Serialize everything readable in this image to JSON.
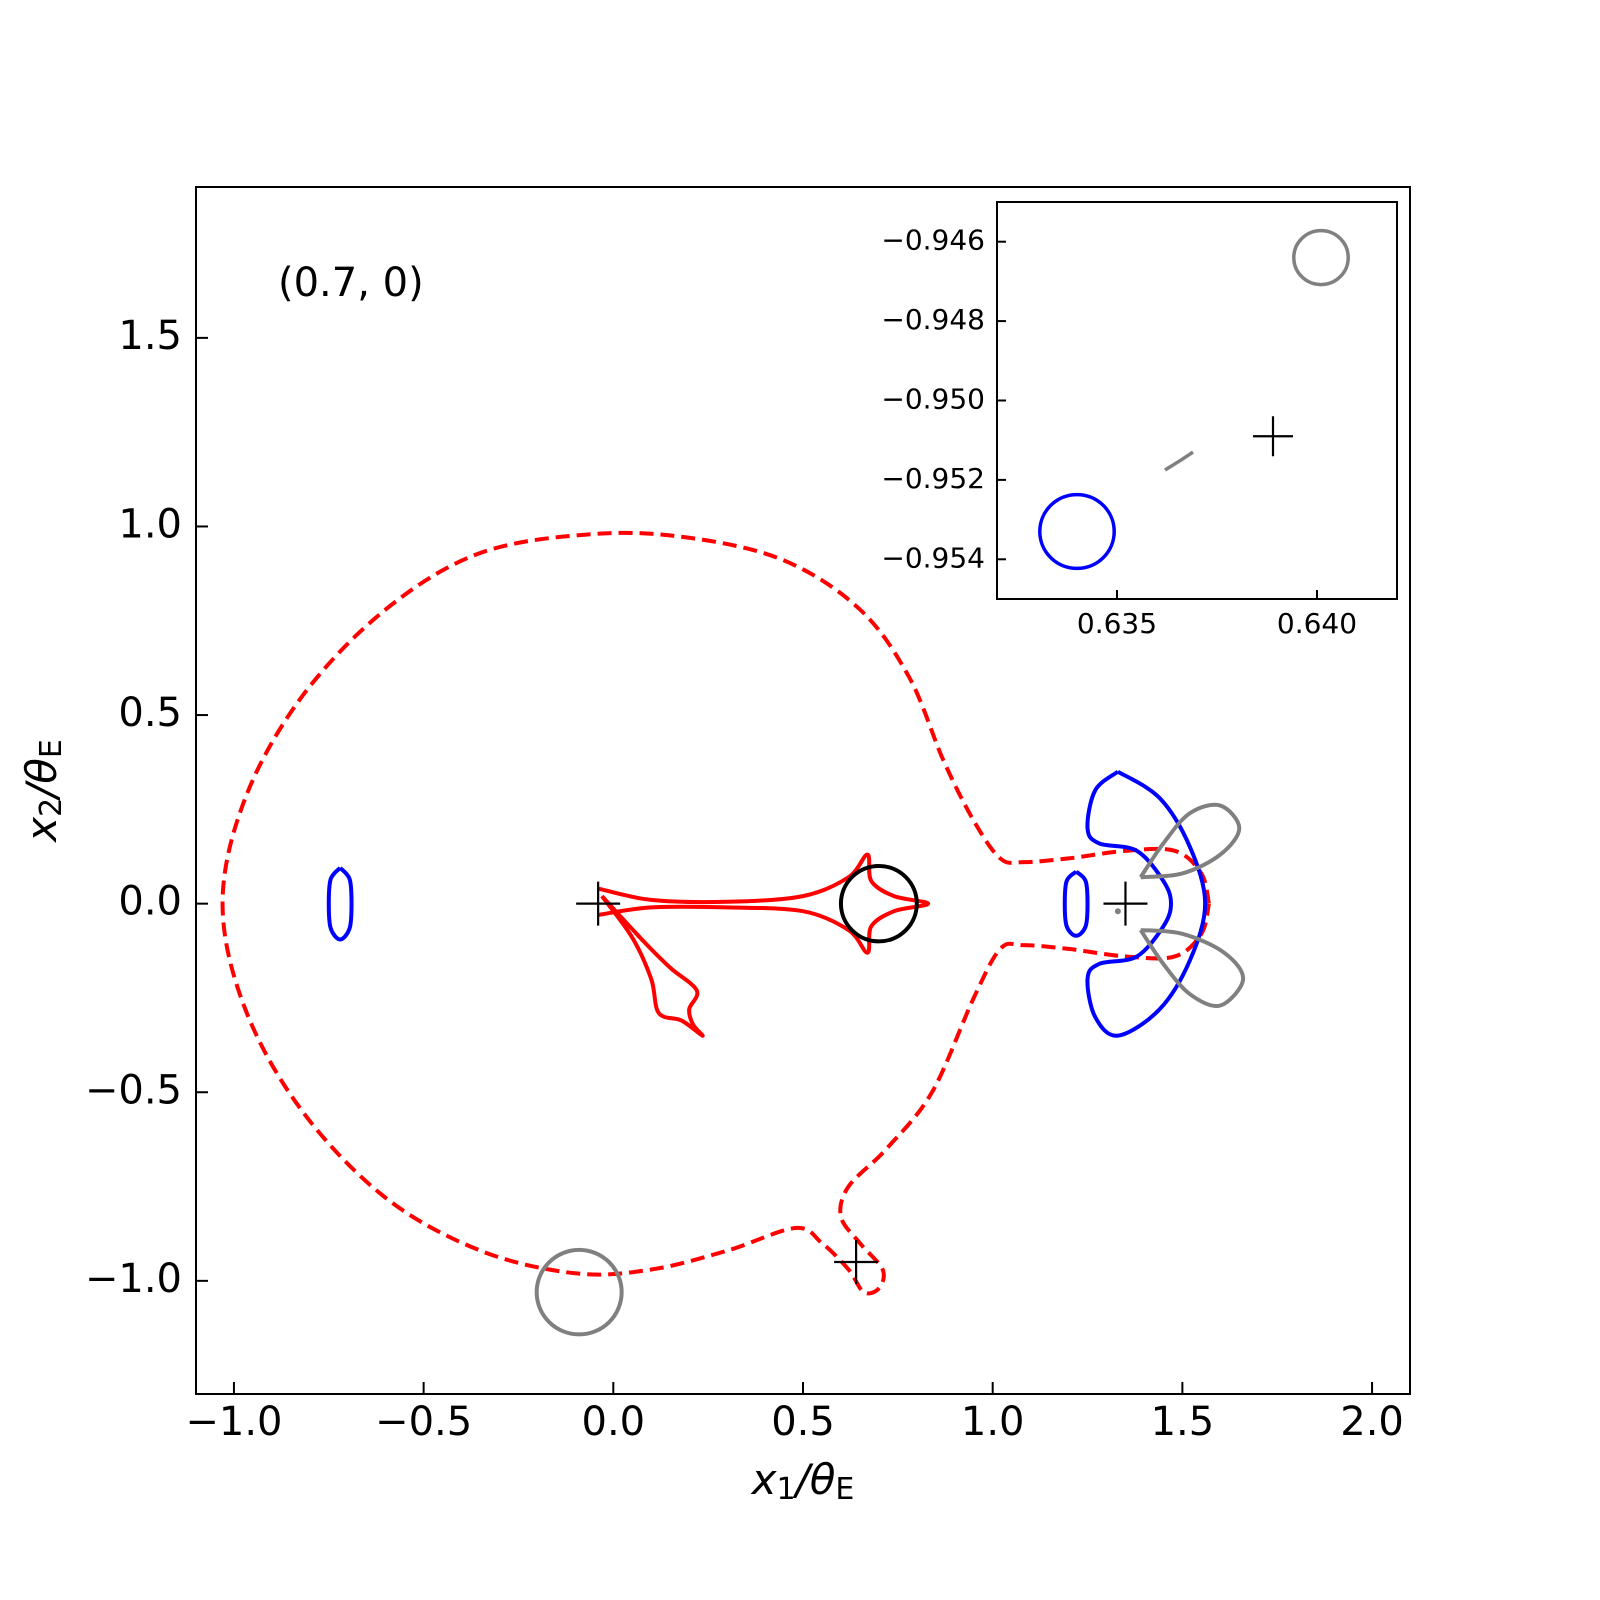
{
  "chart_data": [
    {
      "type": "line",
      "annotation": "(0.7, 0)",
      "xlabel": [
        "x",
        "1",
        "/θ",
        "E"
      ],
      "ylabel": [
        "x",
        "2",
        "/θ",
        "E"
      ],
      "xlim": [
        -1.1,
        2.1
      ],
      "ylim": [
        -1.3,
        1.9
      ],
      "xticks": [
        {
          "value": -1.0,
          "label": "−1.0"
        },
        {
          "value": -0.5,
          "label": "−0.5"
        },
        {
          "value": 0.0,
          "label": "0.0"
        },
        0.5,
        {
          "value": 1.0,
          "label": "1.0"
        },
        1.5,
        {
          "value": 2.0,
          "label": "2.0"
        }
      ],
      "yticks": [
        {
          "value": -1.0,
          "label": "−1.0"
        },
        {
          "value": -0.5,
          "label": "−0.5"
        },
        {
          "value": 0.0,
          "label": "0.0"
        },
        0.5,
        {
          "value": 1.0,
          "label": "1.0"
        },
        1.5
      ],
      "series": [
        {
          "style": "dashed",
          "color": "#ff0000",
          "x": [
            1.57,
            1.55,
            1.48,
            1.35,
            1.2,
            1.08,
            1.02,
            0.95,
            0.87,
            0.78,
            0.65,
            0.45,
            0.2,
            -0.05,
            -0.35,
            -0.6,
            -0.82,
            -0.97,
            -1.03,
            -0.97,
            -0.82,
            -0.6,
            -0.35,
            -0.1,
            0.1,
            0.3,
            0.48,
            0.55,
            0.62,
            0.66,
            0.7,
            0.71,
            0.65,
            0.6,
            0.62,
            0.72,
            0.84,
            0.95,
            1.02,
            1.08,
            1.2,
            1.35,
            1.48,
            1.55,
            1.57
          ],
          "y": [
            0,
            0.08,
            0.14,
            0.14,
            0.12,
            0.11,
            0.12,
            0.22,
            0.38,
            0.6,
            0.78,
            0.91,
            0.97,
            0.98,
            0.93,
            0.78,
            0.55,
            0.28,
            0,
            -0.28,
            -0.55,
            -0.78,
            -0.92,
            -0.98,
            -0.97,
            -0.92,
            -0.86,
            -0.9,
            -0.97,
            -1.03,
            -1.02,
            -0.97,
            -0.9,
            -0.83,
            -0.75,
            -0.65,
            -0.5,
            -0.25,
            -0.12,
            -0.11,
            -0.12,
            -0.14,
            -0.14,
            -0.08,
            0
          ]
        },
        {
          "style": "solid",
          "color": "#ff0000",
          "x": [
            -0.04,
            0.1,
            0.3,
            0.5,
            0.62,
            0.67,
            0.68,
            0.74,
            0.83,
            0.74,
            0.68,
            0.67,
            0.62,
            0.5,
            0.3,
            0.1,
            -0.04,
            null,
            -0.03,
            0.08,
            0.15,
            0.22,
            0.2,
            0.21,
            0.235,
            0.18,
            0.12,
            0.1,
            0.05,
            -0.03
          ],
          "y": [
            0.04,
            0.01,
            0.005,
            0.02,
            0.07,
            0.13,
            0.06,
            0.02,
            0,
            -0.02,
            -0.06,
            -0.13,
            -0.07,
            -0.02,
            -0.01,
            -0.01,
            -0.03,
            null,
            0.02,
            -0.1,
            -0.17,
            -0.23,
            -0.28,
            -0.32,
            -0.35,
            -0.31,
            -0.29,
            -0.2,
            -0.09,
            0.02
          ]
        },
        {
          "style": "solid",
          "color": "#0000ff",
          "x": [
            -0.72,
            -0.695,
            -0.69,
            -0.695,
            -0.72,
            -0.745,
            -0.75,
            -0.745,
            -0.72,
            null,
            1.22,
            1.245,
            1.25,
            1.245,
            1.22,
            1.195,
            1.19,
            1.195,
            1.22,
            null,
            1.33,
            1.44,
            1.52,
            1.56,
            1.52,
            1.44,
            1.33,
            1.27,
            1.25,
            1.28,
            1.38,
            1.45,
            1.47,
            1.45,
            1.38,
            1.28,
            1.25,
            1.27,
            1.33
          ],
          "y": [
            0.095,
            0.065,
            0,
            -0.065,
            -0.095,
            -0.065,
            0,
            0.065,
            0.095,
            null,
            0.085,
            0.06,
            0,
            -0.06,
            -0.085,
            -0.06,
            0,
            0.06,
            0.085,
            null,
            0.35,
            0.28,
            0.15,
            0,
            -0.15,
            -0.28,
            -0.35,
            -0.3,
            -0.2,
            -0.16,
            -0.14,
            -0.06,
            0,
            0.06,
            0.14,
            0.16,
            0.2,
            0.3,
            0.35
          ]
        },
        {
          "style": "solid",
          "color": "#808080",
          "x": [
            1.39,
            1.45,
            1.52,
            1.6,
            1.65,
            1.6,
            1.5,
            1.39,
            null,
            1.39,
            1.45,
            1.52,
            1.6,
            1.66,
            1.61,
            1.5,
            1.39
          ],
          "y": [
            0.07,
            0.16,
            0.24,
            0.26,
            0.2,
            0.13,
            0.08,
            0.07,
            null,
            -0.07,
            -0.16,
            -0.24,
            -0.27,
            -0.2,
            -0.13,
            -0.08,
            -0.07
          ]
        },
        {
          "style": "circle",
          "color": "#808080",
          "center": [
            -0.09,
            -1.03
          ],
          "radius": 0.112
        },
        {
          "style": "circle",
          "color": "#000000",
          "center": [
            0.7,
            0
          ],
          "radius": 0.1
        },
        {
          "style": "dot",
          "color": "#808080",
          "x": [
            1.33
          ],
          "y": [
            -0.02
          ]
        },
        {
          "style": "plus",
          "color": "#000000",
          "x": [
            -0.04,
            1.35,
            0.64
          ],
          "y": [
            0,
            0,
            -0.95
          ]
        }
      ]
    },
    {
      "type": "line",
      "xlim": [
        0.632,
        0.642
      ],
      "ylim": [
        -0.955,
        -0.945
      ],
      "xticks": [
        0.635,
        {
          "value": 0.64,
          "label": "0.640"
        }
      ],
      "yticks": [
        {
          "value": -0.946,
          "label": "−0.946"
        },
        {
          "value": -0.948,
          "label": "−0.948"
        },
        {
          "value": -0.95,
          "label": "−0.950"
        },
        {
          "value": -0.952,
          "label": "−0.952"
        },
        {
          "value": -0.954,
          "label": "−0.954"
        }
      ],
      "series": [
        {
          "style": "circle",
          "color": "#808080",
          "center": [
            0.6401,
            -0.9464
          ],
          "radius": 0.00068
        },
        {
          "style": "circle",
          "color": "#0000ff",
          "center": [
            0.634,
            -0.9533
          ],
          "radius": 0.00093
        },
        {
          "style": "solid",
          "color": "#808080",
          "x": [
            0.6362,
            0.6366,
            0.6369
          ],
          "y": [
            -0.95175,
            -0.9515,
            -0.9513
          ]
        },
        {
          "style": "plus",
          "color": "#000000",
          "x": [
            0.6389
          ],
          "y": [
            -0.9509
          ]
        }
      ]
    }
  ]
}
